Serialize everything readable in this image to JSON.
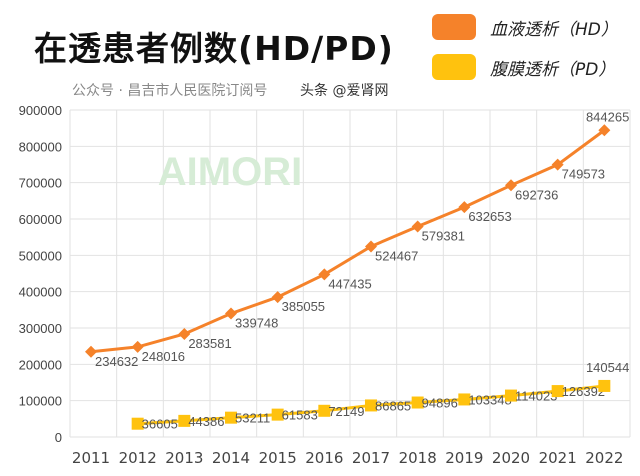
{
  "chart_data": {
    "type": "line",
    "title": "在透患者例数(HD/PD)",
    "categories": [
      "2011",
      "2012",
      "2013",
      "2014",
      "2015",
      "2016",
      "2017",
      "2018",
      "2019",
      "2020",
      "2021",
      "2022"
    ],
    "ylim": [
      0,
      900000
    ],
    "yticks": [
      "0",
      "100000",
      "200000",
      "300000",
      "400000",
      "500000",
      "600000",
      "700000",
      "800000",
      "900000"
    ],
    "grid": "vertical and horizontal",
    "legend_position": "top-right",
    "series": [
      {
        "name": "血液透析（HD）",
        "color": "#F5822A",
        "marker": "diamond",
        "values": [
          234632,
          248016,
          283581,
          339748,
          385055,
          447435,
          524467,
          579381,
          632653,
          692736,
          749573,
          844265
        ]
      },
      {
        "name": "腹膜透析（PD）",
        "color": "#FFC20E",
        "marker": "square",
        "values": [
          null,
          36605,
          44386,
          53211,
          61583,
          72149,
          86865,
          94896,
          103348,
          114023,
          126392,
          140544
        ]
      }
    ]
  },
  "watermarks": {
    "logo": "AIMORI",
    "wechat": "公众号 · 昌吉市人民医院订阅号",
    "toutiao": "头条 @爱肾网"
  }
}
